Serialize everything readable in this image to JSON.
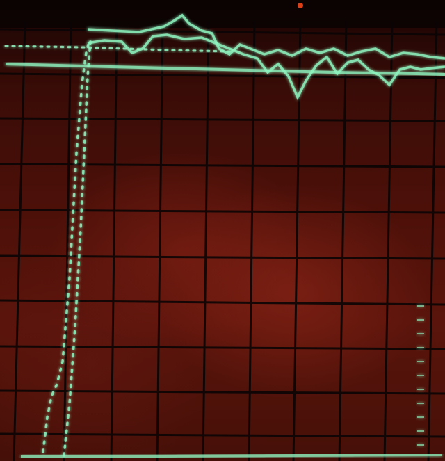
{
  "scene": {
    "subject": "oscilloscope-screen",
    "colors": {
      "background": "#3c0d08",
      "graticule": "#0b0505",
      "trace": "#8ff5c0",
      "trace_glow": "#3fe0a0",
      "indicator_led": "#ff4a1a"
    },
    "traces": [
      {
        "name": "",
        "style": "dotted",
        "shape": "step-up-with-ringing"
      },
      {
        "name": "",
        "style": "dotted",
        "shape": "step-up"
      },
      {
        "name": "",
        "style": "solid",
        "shape": "baseline-reference"
      }
    ]
  }
}
